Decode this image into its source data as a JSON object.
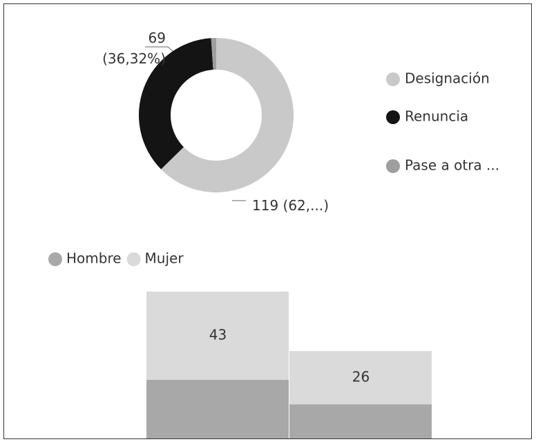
{
  "chart_data": [
    {
      "type": "donut",
      "categories": [
        "Designación",
        "Renuncia",
        "Pase a otra ..."
      ],
      "values": [
        119,
        69,
        2
      ],
      "value_labels": [
        "119 (62,...)",
        "69 (36,32%)",
        null
      ],
      "colors": [
        "#c9c9c9",
        "#141414",
        "#9e9e9e"
      ],
      "legend": "right"
    },
    {
      "type": "bar",
      "stacked": true,
      "categories": [
        null,
        null
      ],
      "series": [
        {
          "name": "Hombre",
          "color": "#a8a8a8",
          "values": [
            30,
            18
          ],
          "show_labels": false
        },
        {
          "name": "Mujer",
          "color": "#dadada",
          "values": [
            43,
            26
          ],
          "show_labels": true
        }
      ],
      "ylim": [
        0,
        75
      ],
      "legend": "top-left"
    }
  ]
}
